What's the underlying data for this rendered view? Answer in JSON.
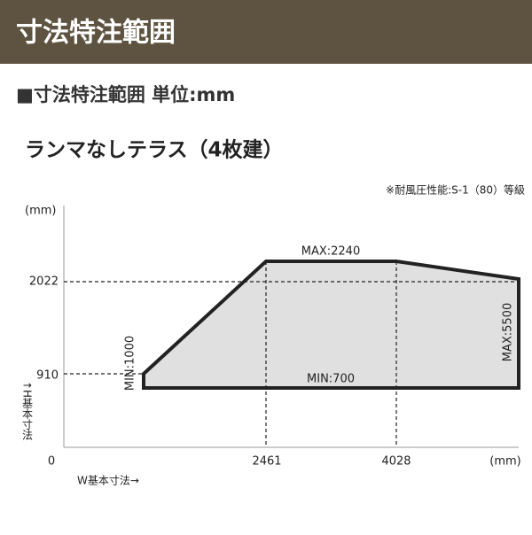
{
  "header": {
    "title": "寸法特注範囲"
  },
  "section": {
    "title": "■寸法特注範囲 単位:mm"
  },
  "diagram": {
    "title": "ランマなしテラス（4枚建）",
    "note": "※耐風圧性能:S-1（80）等級",
    "y_unit": "(mm)",
    "x_unit": "(mm)",
    "y_axis_label": "↑H基本寸法",
    "x_axis_label": "W基本寸法→",
    "origin": "0",
    "y_ticks": [
      "2022",
      "910"
    ],
    "x_ticks": [
      "2461",
      "4028"
    ],
    "labels": {
      "max_height": "MAX:2240",
      "min_height": "MIN:700",
      "min_width": "MIN:1000",
      "max_width": "MAX:5500"
    }
  }
}
